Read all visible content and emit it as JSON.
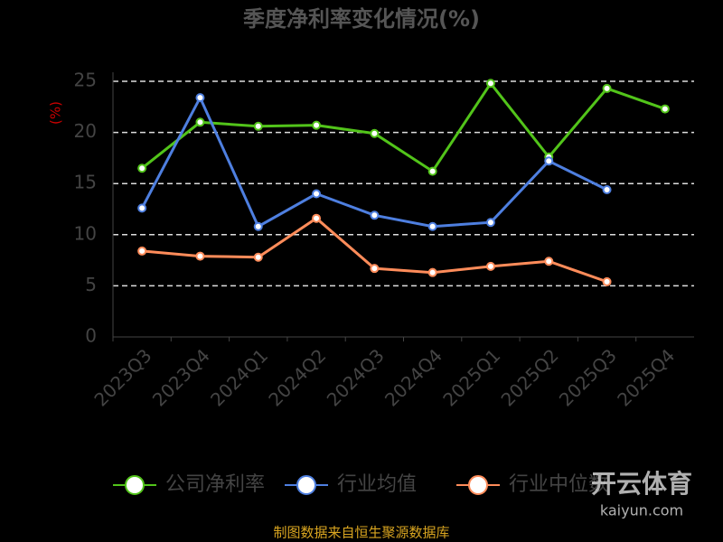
{
  "chart_data": {
    "type": "line",
    "title": "季度净利率变化情况(%)",
    "y_label": "(%)",
    "categories": [
      "2023Q3",
      "2023Q4",
      "2024Q1",
      "2024Q2",
      "2024Q3",
      "2024Q4",
      "2025Q1",
      "2025Q2",
      "2025Q3",
      "2025Q4"
    ],
    "series": [
      {
        "name": "公司净利率",
        "color": "#52c41a",
        "values": [
          16.5,
          21.0,
          20.6,
          20.7,
          19.9,
          16.2,
          24.8,
          17.6,
          24.3,
          22.3
        ]
      },
      {
        "name": "行业均值",
        "color": "#4e7fe0",
        "values": [
          12.6,
          23.4,
          10.8,
          14.0,
          11.9,
          10.8,
          11.2,
          17.2,
          14.4,
          null
        ]
      },
      {
        "name": "行业中位数",
        "color": "#ff8c5a",
        "values": [
          8.4,
          7.9,
          7.8,
          11.6,
          6.7,
          6.3,
          6.9,
          7.4,
          5.4,
          null
        ]
      }
    ],
    "ylim": [
      0,
      25
    ],
    "yticks": [
      0,
      5,
      10,
      15,
      20,
      25
    ],
    "grid": true,
    "legend": "bottom",
    "source": "制图数据来自恒生聚源数据库",
    "watermark": [
      "开云体育",
      "kaiyun.com"
    ]
  }
}
